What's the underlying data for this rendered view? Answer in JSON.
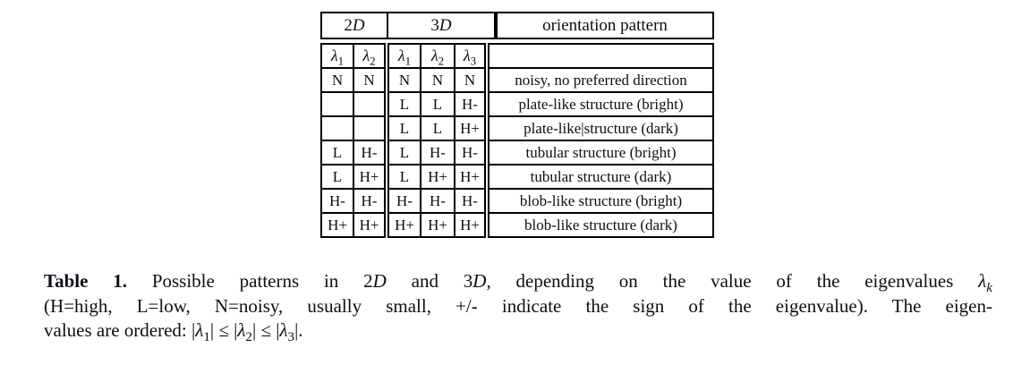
{
  "table": {
    "header": {
      "col_2d": [
        {
          "t": "2"
        },
        {
          "t": "D",
          "style": "i"
        }
      ],
      "col_3d": [
        {
          "t": "3"
        },
        {
          "t": "D",
          "style": "i"
        }
      ],
      "col_pattern": "orientation pattern"
    },
    "lambda_row": {
      "cells": [
        {
          "base": "λ",
          "sub": "1"
        },
        {
          "base": "λ",
          "sub": "2"
        },
        {
          "base": "λ",
          "sub": "1"
        },
        {
          "base": "λ",
          "sub": "2"
        },
        {
          "base": "λ",
          "sub": "3"
        }
      ],
      "pattern": ""
    },
    "rows": [
      {
        "cells": [
          "N",
          "N",
          "N",
          "N",
          "N"
        ],
        "pattern": "noisy, no preferred direction"
      },
      {
        "cells": [
          "",
          "",
          "L",
          "L",
          "H-"
        ],
        "pattern": "plate-like structure (bright)"
      },
      {
        "cells": [
          "",
          "",
          "L",
          "L",
          "H+"
        ],
        "pattern": "plate-like|structure (dark)"
      },
      {
        "cells": [
          "L",
          "H-",
          "L",
          "H-",
          "H-"
        ],
        "pattern": "tubular structure (bright)"
      },
      {
        "cells": [
          "L",
          "H+",
          "L",
          "H+",
          "H+"
        ],
        "pattern": "tubular structure (dark)"
      },
      {
        "cells": [
          "H-",
          "H-",
          "H-",
          "H-",
          "H-"
        ],
        "pattern": "blob-like structure (bright)"
      },
      {
        "cells": [
          "H+",
          "H+",
          "H+",
          "H+",
          "H+"
        ],
        "pattern": "blob-like structure (dark)"
      }
    ]
  },
  "caption": {
    "lines": [
      [
        {
          "t": "Table 1.",
          "style": "b"
        },
        {
          "t": " Possible patterns in 2"
        },
        {
          "t": "D",
          "style": "i"
        },
        {
          "t": " and 3"
        },
        {
          "t": "D",
          "style": "i"
        },
        {
          "t": ", depending on the value of the eigenvalues "
        },
        {
          "t": "λ",
          "style": "i"
        },
        {
          "t": "k",
          "style": "i sub"
        }
      ],
      [
        {
          "t": "(H=high, L=low, N=noisy, usually small, +/- indicate the sign of the eigenvalue). The eigen-"
        }
      ],
      [
        {
          "t": "values are ordered: |"
        },
        {
          "t": "λ",
          "style": "i"
        },
        {
          "t": "1",
          "style": "sub"
        },
        {
          "t": "| ≤ |"
        },
        {
          "t": "λ",
          "style": "i"
        },
        {
          "t": "2",
          "style": "sub"
        },
        {
          "t": "| ≤ |"
        },
        {
          "t": "λ",
          "style": "i"
        },
        {
          "t": "3",
          "style": "sub"
        },
        {
          "t": "|."
        }
      ]
    ]
  },
  "colors": {
    "background": "#ffffff",
    "text": "#0e0e16",
    "border": "#000000"
  }
}
